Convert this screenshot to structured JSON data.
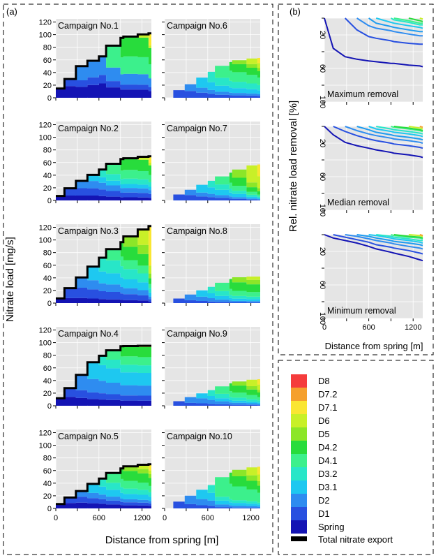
{
  "colors": {
    "Spring": "#1414b4",
    "D1": "#2850e0",
    "D2": "#2e8cf0",
    "D3.1": "#1ec8f0",
    "D3.2": "#28e6c8",
    "D4.1": "#3cf08c",
    "D4.2": "#28dc3c",
    "D5": "#8ce628",
    "D6": "#c8f028",
    "D7.1": "#fae632",
    "D7.2": "#f5a02d",
    "D8": "#f53c3c",
    "total": "#000000",
    "panel_bg": "#e5e5e5",
    "grid": "#ffffff"
  },
  "panel_a": {
    "label": "(a)",
    "ylabel": "Nitrate load [mg/s]",
    "xlabel": "Distance from spring [m]",
    "x_ticks": [
      "0",
      "600",
      "1200"
    ],
    "y_ticks": [
      "0",
      "20",
      "40",
      "60",
      "80",
      "100",
      "120"
    ]
  },
  "panel_b": {
    "label": "(b)",
    "ylabel": "Rel. nitrate load removal [%]",
    "xlabel": "Distance from spring [m]",
    "x_ticks": [
      "0",
      "600",
      "1200"
    ],
    "y_ticks": [
      "20",
      "60",
      "100"
    ]
  },
  "legend": {
    "entries": [
      "D8",
      "D7.2",
      "D7.1",
      "D6",
      "D5",
      "D4.2",
      "D4.1",
      "D3.2",
      "D3.1",
      "D2",
      "D1",
      "Spring"
    ],
    "total_label": "Total nitrate export"
  },
  "chart_data": [
    {
      "type": "area",
      "panel": "a",
      "stacked": true,
      "x_unit": "m",
      "y_unit": "mg/s",
      "xlim": [
        0,
        1330
      ],
      "ylim": [
        0,
        125
      ],
      "series_order": [
        "Spring",
        "D1",
        "D2",
        "D3.1",
        "D3.2",
        "D4.1",
        "D4.2",
        "D5",
        "D6",
        "D7.1",
        "D7.2",
        "D8"
      ],
      "inflow_x": [
        0,
        120,
        280,
        440,
        600,
        700,
        900,
        940,
        1140,
        1290
      ],
      "campaigns": [
        {
          "title": "Campaign No.1",
          "total_final": 102
        },
        {
          "title": "Campaign No.2",
          "total_final": 70
        },
        {
          "title": "Campaign No.3",
          "total_final": 122
        },
        {
          "title": "Campaign No.4",
          "total_final": 95
        },
        {
          "title": "Campaign No.5",
          "total_final": 70
        },
        {
          "title": "Campaign No.6",
          "total_final": 63
        },
        {
          "title": "Campaign No.7",
          "total_final": 57
        },
        {
          "title": "Campaign No.8",
          "total_final": 42
        },
        {
          "title": "Campaign No.9",
          "total_final": 42
        },
        {
          "title": "Campaign No.10",
          "total_final": 66
        }
      ],
      "inflows": [
        [
          10,
          6,
          13,
          0,
          0,
          21,
          24,
          0,
          4,
          18
        ],
        [
          4,
          6,
          6,
          5,
          7,
          11,
          15,
          0,
          4,
          10
        ],
        [
          2,
          4,
          4,
          6,
          7,
          6,
          9,
          7,
          12,
          60
        ],
        [
          8,
          8,
          16,
          20,
          12,
          13,
          16,
          0,
          2,
          0
        ],
        [
          4,
          4,
          4,
          7,
          7,
          10,
          13,
          6,
          6,
          10
        ],
        [
          0,
          3,
          3,
          6,
          8,
          12,
          10,
          5,
          8,
          8
        ],
        [
          0,
          1,
          1,
          2,
          2,
          3,
          5,
          5,
          18,
          18
        ],
        [
          0,
          1,
          2,
          3,
          4,
          7,
          12,
          7,
          5,
          0
        ],
        [
          0,
          1,
          2,
          2,
          3,
          5,
          7,
          4,
          8,
          8
        ],
        [
          0,
          1,
          2,
          3,
          3,
          15,
          11,
          7,
          10,
          12
        ]
      ]
    },
    {
      "type": "line",
      "panel": "b",
      "title": "Maximum removal",
      "x_unit": "m",
      "y_unit": "%",
      "xlim": [
        0,
        1330
      ],
      "ylim": [
        100,
        0
      ],
      "series": [
        {
          "x": [
            0,
            120,
            280,
            440,
            600,
            700,
            900,
            940,
            1140,
            1290,
            1330
          ],
          "y": [
            0,
            36,
            46,
            49,
            51,
            52,
            54,
            54,
            56,
            57,
            58
          ]
        },
        {
          "x": [
            280,
            440,
            600,
            700,
            900,
            940,
            1140,
            1290,
            1330
          ],
          "y": [
            0,
            14,
            22,
            24,
            27,
            28,
            30,
            31,
            31
          ]
        },
        {
          "x": [
            440,
            600,
            700,
            900,
            940,
            1140,
            1290,
            1330
          ],
          "y": [
            0,
            9,
            12,
            15,
            16,
            19,
            21,
            21
          ]
        },
        {
          "x": [
            600,
            700,
            900,
            940,
            1140,
            1290,
            1330
          ],
          "y": [
            0,
            6,
            10,
            11,
            14,
            16,
            16
          ]
        },
        {
          "x": [
            700,
            900,
            940,
            1140,
            1290,
            1330
          ],
          "y": [
            0,
            5,
            6,
            9,
            11,
            12
          ]
        },
        {
          "x": [
            900,
            940,
            1140,
            1290,
            1330
          ],
          "y": [
            0,
            2,
            5,
            8,
            8
          ]
        },
        {
          "x": [
            940,
            1140,
            1290,
            1330
          ],
          "y": [
            0,
            3,
            6,
            6
          ]
        },
        {
          "x": [
            1140,
            1290,
            1330
          ],
          "y": [
            0,
            3,
            4
          ]
        },
        {
          "x": [
            1290,
            1330
          ],
          "y": [
            0,
            1
          ]
        }
      ]
    },
    {
      "type": "line",
      "panel": "b",
      "title": "Median removal",
      "x_unit": "m",
      "y_unit": "%",
      "xlim": [
        0,
        1330
      ],
      "ylim": [
        100,
        0
      ],
      "series": [
        {
          "x": [
            0,
            120,
            280,
            440,
            600,
            700,
            900,
            940,
            1140,
            1290,
            1330
          ],
          "y": [
            0,
            10,
            19,
            23,
            26,
            28,
            31,
            32,
            34,
            36,
            37
          ]
        },
        {
          "x": [
            120,
            280,
            440,
            600,
            700,
            900,
            940,
            1140,
            1290,
            1330
          ],
          "y": [
            0,
            6,
            11,
            15,
            17,
            20,
            21,
            23,
            25,
            26
          ]
        },
        {
          "x": [
            280,
            440,
            600,
            700,
            900,
            940,
            1140,
            1290,
            1330
          ],
          "y": [
            0,
            5,
            9,
            11,
            14,
            15,
            17,
            19,
            20
          ]
        },
        {
          "x": [
            440,
            600,
            700,
            900,
            940,
            1140,
            1290,
            1330
          ],
          "y": [
            0,
            4,
            7,
            10,
            11,
            13,
            15,
            16
          ]
        },
        {
          "x": [
            600,
            700,
            900,
            940,
            1140,
            1290,
            1330
          ],
          "y": [
            0,
            3,
            6,
            7,
            9,
            11,
            12
          ]
        },
        {
          "x": [
            700,
            900,
            940,
            1140,
            1290,
            1330
          ],
          "y": [
            0,
            3,
            4,
            6,
            8,
            9
          ]
        },
        {
          "x": [
            900,
            940,
            1140,
            1290,
            1330
          ],
          "y": [
            0,
            1,
            3,
            5,
            6
          ]
        },
        {
          "x": [
            940,
            1140,
            1290,
            1330
          ],
          "y": [
            0,
            2,
            4,
            5
          ]
        },
        {
          "x": [
            1140,
            1290,
            1330
          ],
          "y": [
            0,
            2,
            3
          ]
        },
        {
          "x": [
            1290,
            1330
          ],
          "y": [
            0,
            1
          ]
        }
      ]
    },
    {
      "type": "line",
      "panel": "b",
      "title": "Minimum removal",
      "x_unit": "m",
      "y_unit": "%",
      "xlim": [
        0,
        1330
      ],
      "ylim": [
        100,
        0
      ],
      "series": [
        {
          "x": [
            0,
            120,
            280,
            440,
            600,
            700,
            900,
            940,
            1140,
            1290,
            1330
          ],
          "y": [
            0,
            4,
            7,
            10,
            14,
            17,
            21,
            22,
            26,
            30,
            31
          ]
        },
        {
          "x": [
            120,
            280,
            440,
            600,
            700,
            900,
            940,
            1140,
            1290,
            1330
          ],
          "y": [
            0,
            3,
            6,
            9,
            12,
            15,
            16,
            19,
            22,
            23
          ]
        },
        {
          "x": [
            280,
            440,
            600,
            700,
            900,
            940,
            1140,
            1290,
            1330
          ],
          "y": [
            0,
            2,
            5,
            7,
            10,
            11,
            14,
            16,
            17
          ]
        },
        {
          "x": [
            440,
            600,
            700,
            900,
            940,
            1140,
            1290,
            1330
          ],
          "y": [
            0,
            2,
            4,
            7,
            8,
            10,
            12,
            13
          ]
        },
        {
          "x": [
            600,
            700,
            900,
            940,
            1140,
            1290,
            1330
          ],
          "y": [
            0,
            1,
            4,
            5,
            7,
            9,
            10
          ]
        },
        {
          "x": [
            700,
            900,
            940,
            1140,
            1290,
            1330
          ],
          "y": [
            0,
            2,
            3,
            5,
            7,
            7
          ]
        },
        {
          "x": [
            900,
            940,
            1140,
            1290,
            1330
          ],
          "y": [
            0,
            1,
            3,
            4,
            5
          ]
        },
        {
          "x": [
            940,
            1140,
            1290,
            1330
          ],
          "y": [
            0,
            2,
            3,
            4
          ]
        },
        {
          "x": [
            1140,
            1290,
            1330
          ],
          "y": [
            0,
            1,
            2
          ]
        },
        {
          "x": [
            1290,
            1330
          ],
          "y": [
            0,
            1
          ]
        }
      ]
    }
  ]
}
